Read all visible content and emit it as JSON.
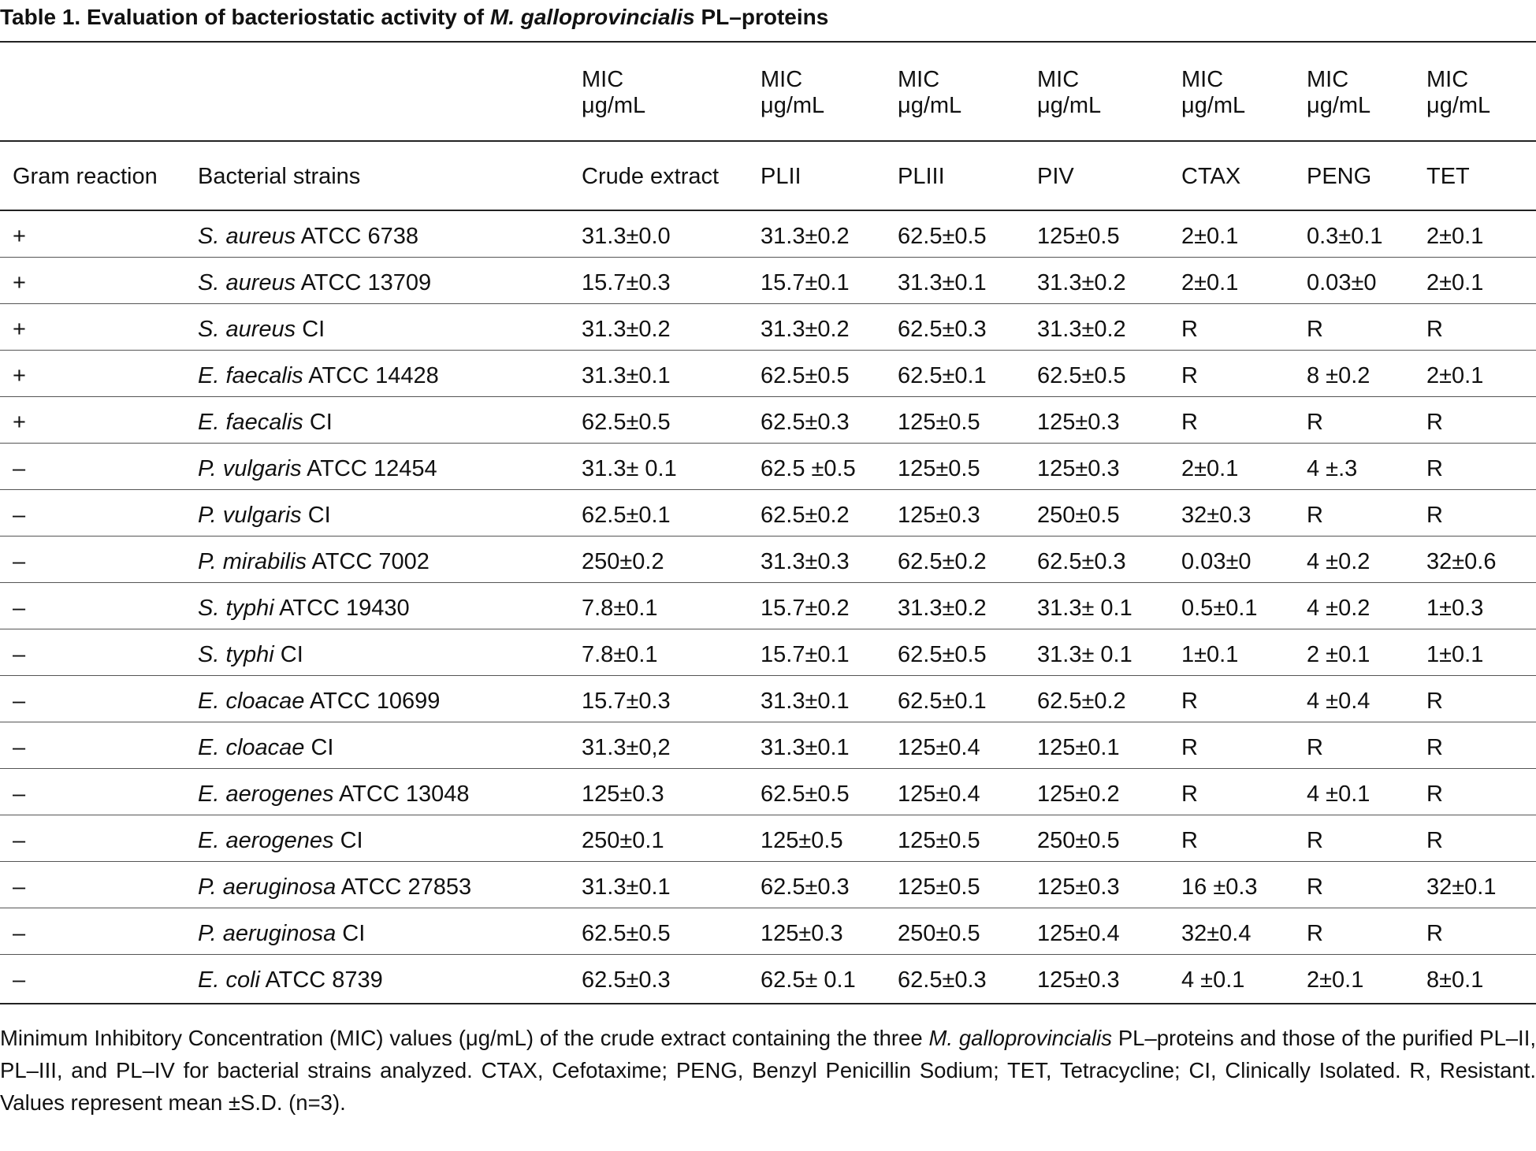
{
  "title": {
    "prefix": "Table 1. Evaluation of bacteriostatic activity of ",
    "species": "M. galloprovincialis",
    "suffix": " PL–proteins"
  },
  "unit_header": {
    "line1": "MIC",
    "line2": "μg/mL"
  },
  "columns": [
    "Gram reaction",
    "Bacterial strains",
    "Crude extract",
    "PLII",
    "PLIII",
    "PIV",
    "CTAX",
    "PENG",
    "TET"
  ],
  "rows": [
    {
      "gram": "+",
      "species": "S. aureus",
      "strain": "ATCC 6738",
      "values": [
        "31.3±0.0",
        "31.3±0.2",
        "62.5±0.5",
        "125±0.5",
        "2±0.1",
        "0.3±0.1",
        "2±0.1"
      ]
    },
    {
      "gram": "+",
      "species": "S. aureus",
      "strain": "ATCC 13709",
      "values": [
        "15.7±0.3",
        "15.7±0.1",
        "31.3±0.1",
        "31.3±0.2",
        "2±0.1",
        "0.03±0",
        "2±0.1"
      ]
    },
    {
      "gram": "+",
      "species": "S. aureus",
      "strain": "CI",
      "values": [
        "31.3±0.2",
        "31.3±0.2",
        "62.5±0.3",
        "31.3±0.2",
        "R",
        "R",
        "R"
      ]
    },
    {
      "gram": "+",
      "species": "E. faecalis",
      "strain": "ATCC 14428",
      "values": [
        "31.3±0.1",
        "62.5±0.5",
        "62.5±0.1",
        "62.5±0.5",
        "R",
        "8 ±0.2",
        "2±0.1"
      ]
    },
    {
      "gram": "+",
      "species": "E. faecalis",
      "strain": "CI",
      "values": [
        "62.5±0.5",
        "62.5±0.3",
        "125±0.5",
        "125±0.3",
        "R",
        "R",
        "R"
      ]
    },
    {
      "gram": "–",
      "species": "P. vulgaris",
      "strain": "ATCC 12454",
      "values": [
        "31.3± 0.1",
        "62.5 ±0.5",
        "125±0.5",
        "125±0.3",
        "2±0.1",
        "4 ±.3",
        "R"
      ]
    },
    {
      "gram": "–",
      "species": "P. vulgaris",
      "strain": "CI",
      "values": [
        "62.5±0.1",
        "62.5±0.2",
        "125±0.3",
        "250±0.5",
        "32±0.3",
        "R",
        "R"
      ]
    },
    {
      "gram": "–",
      "species": "P. mirabilis",
      "strain": "ATCC 7002",
      "values": [
        "250±0.2",
        "31.3±0.3",
        "62.5±0.2",
        "62.5±0.3",
        "0.03±0",
        "4 ±0.2",
        "32±0.6"
      ]
    },
    {
      "gram": "–",
      "species": "S. typhi",
      "strain": "ATCC 19430",
      "values": [
        "7.8±0.1",
        "15.7±0.2",
        "31.3±0.2",
        "31.3± 0.1",
        "0.5±0.1",
        "4 ±0.2",
        "1±0.3"
      ]
    },
    {
      "gram": "–",
      "species": "S. typhi",
      "strain": "CI",
      "values": [
        "7.8±0.1",
        "15.7±0.1",
        "62.5±0.5",
        "31.3± 0.1",
        "1±0.1",
        "2 ±0.1",
        "1±0.1"
      ]
    },
    {
      "gram": "–",
      "species": "E. cloacae",
      "strain": "ATCC 10699",
      "values": [
        "15.7±0.3",
        "31.3±0.1",
        "62.5±0.1",
        "62.5±0.2",
        "R",
        "4 ±0.4",
        "R"
      ]
    },
    {
      "gram": "–",
      "species": "E. cloacae",
      "strain": "CI",
      "values": [
        "31.3±0,2",
        "31.3±0.1",
        "125±0.4",
        "125±0.1",
        "R",
        "R",
        "R"
      ]
    },
    {
      "gram": "–",
      "species": "E. aerogenes",
      "strain": "ATCC 13048",
      "values": [
        "125±0.3",
        "62.5±0.5",
        "125±0.4",
        "125±0.2",
        "R",
        "4 ±0.1",
        "R"
      ]
    },
    {
      "gram": "–",
      "species": "E. aerogenes",
      "strain": "CI",
      "values": [
        "250±0.1",
        "125±0.5",
        "125±0.5",
        "250±0.5",
        "R",
        "R",
        "R"
      ]
    },
    {
      "gram": "–",
      "species": "P. aeruginosa",
      "strain": "ATCC 27853",
      "values": [
        "31.3±0.1",
        "62.5±0.3",
        "125±0.5",
        "125±0.3",
        "16 ±0.3",
        "R",
        "32±0.1"
      ]
    },
    {
      "gram": "–",
      "species": "P. aeruginosa",
      "strain": "CI",
      "values": [
        "62.5±0.5",
        "125±0.3",
        "250±0.5",
        "125±0.4",
        "32±0.4",
        "R",
        "R"
      ]
    },
    {
      "gram": "–",
      "species": "E. coli",
      "strain": "ATCC 8739",
      "values": [
        "62.5±0.3",
        "62.5± 0.1",
        "62.5±0.3",
        "125±0.3",
        "4 ±0.1",
        "2±0.1",
        "8±0.1"
      ]
    }
  ],
  "footnote": {
    "part1": "Minimum Inhibitory Concentration (MIC) values (μg/mL) of the crude extract containing the three ",
    "species": "M. galloprovincialis",
    "part2": " PL–proteins and those of the purified PL–II, PL–III, and PL–IV for bacterial strains analyzed. CTAX, Cefotaxime; PENG, Benzyl Penicillin Sodium; TET, Tetracycline; CI, Clinically Isolated. R, Resistant. Values represent mean ±S.D. (n=3)."
  }
}
